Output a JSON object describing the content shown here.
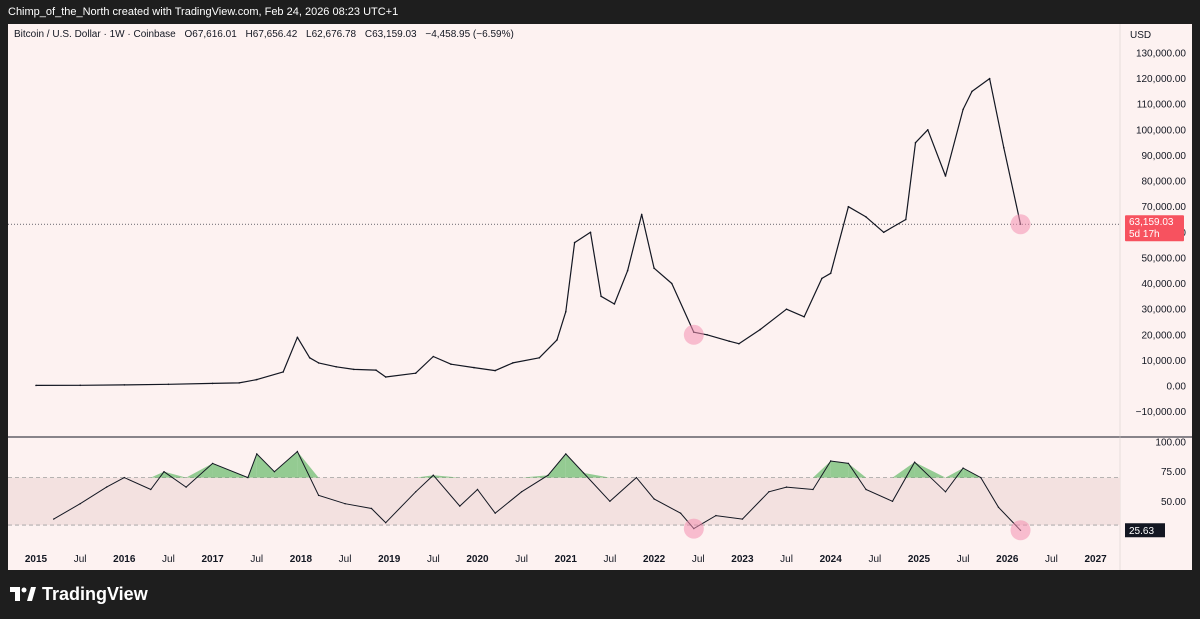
{
  "header": {
    "attribution": "Chimp_of_the_North created with TradingView.com, Feb 24, 2026 08:23 UTC+1"
  },
  "legend": {
    "symbol": "Bitcoin / U.S. Dollar · 1W · Coinbase",
    "open": "O67,616.01",
    "high": "H67,656.42",
    "low": "L62,676.78",
    "close": "C63,159.03",
    "change": "−4,458.95 (−6.59%)"
  },
  "price_axis": {
    "currency": "USD",
    "ticks": [
      "130,000.00",
      "120,000.00",
      "110,000.00",
      "100,000.00",
      "90,000.00",
      "80,000.00",
      "70,000.00",
      "60,000.00",
      "50,000.00",
      "40,000.00",
      "30,000.00",
      "20,000.00",
      "10,000.00",
      "0.00",
      "−10,000.00"
    ],
    "last_price": "63,159.03",
    "countdown": "5d 17h",
    "last_price_color": "#f7525f"
  },
  "rsi_axis": {
    "ticks": [
      "100.00",
      "75.00",
      "50.00"
    ],
    "last_value": "25.63"
  },
  "time_axis": {
    "labels": [
      {
        "t": "2015",
        "bold": true
      },
      {
        "t": "Jul",
        "bold": false
      },
      {
        "t": "2016",
        "bold": true
      },
      {
        "t": "Jul",
        "bold": false
      },
      {
        "t": "2017",
        "bold": true
      },
      {
        "t": "Jul",
        "bold": false
      },
      {
        "t": "2018",
        "bold": true
      },
      {
        "t": "Jul",
        "bold": false
      },
      {
        "t": "2019",
        "bold": true
      },
      {
        "t": "Jul",
        "bold": false
      },
      {
        "t": "2020",
        "bold": true
      },
      {
        "t": "Jul",
        "bold": false
      },
      {
        "t": "2021",
        "bold": true
      },
      {
        "t": "Jul",
        "bold": false
      },
      {
        "t": "2022",
        "bold": true
      },
      {
        "t": "Jul",
        "bold": false
      },
      {
        "t": "2023",
        "bold": true
      },
      {
        "t": "Jul",
        "bold": false
      },
      {
        "t": "2024",
        "bold": true
      },
      {
        "t": "Jul",
        "bold": false
      },
      {
        "t": "2025",
        "bold": true
      },
      {
        "t": "Jul",
        "bold": false
      },
      {
        "t": "2026",
        "bold": true
      },
      {
        "t": "Jul",
        "bold": false
      },
      {
        "t": "2027",
        "bold": true
      }
    ]
  },
  "branding": {
    "name": "TradingView"
  },
  "colors": {
    "panel_bg": "#fdf2f1",
    "price_line": "#131722",
    "highlight": "#f48fb1",
    "rsi_band": "#f3e1e0",
    "rsi_overbought_fill": "#66bb6a"
  },
  "chart_data": [
    {
      "type": "line",
      "title": "Bitcoin / U.S. Dollar · 1W · Coinbase",
      "x": [
        2015.0,
        2015.5,
        2016.0,
        2016.5,
        2017.0,
        2017.3,
        2017.5,
        2017.8,
        2017.96,
        2018.1,
        2018.2,
        2018.4,
        2018.6,
        2018.85,
        2018.96,
        2019.3,
        2019.5,
        2019.7,
        2019.96,
        2020.2,
        2020.4,
        2020.7,
        2020.9,
        2021.0,
        2021.1,
        2021.28,
        2021.4,
        2021.55,
        2021.7,
        2021.86,
        2022.0,
        2022.2,
        2022.45,
        2022.6,
        2022.85,
        2022.96,
        2023.2,
        2023.5,
        2023.7,
        2023.9,
        2024.0,
        2024.2,
        2024.4,
        2024.6,
        2024.85,
        2024.96,
        2025.1,
        2025.3,
        2025.5,
        2025.6,
        2025.8,
        2025.96,
        2026.15
      ],
      "y": [
        250,
        260,
        430,
        650,
        1000,
        1200,
        2500,
        5500,
        19000,
        11000,
        9000,
        7500,
        6500,
        6200,
        3500,
        5000,
        11500,
        8500,
        7200,
        6000,
        9000,
        11000,
        18000,
        29000,
        56000,
        60000,
        35000,
        32000,
        45000,
        67000,
        46000,
        40000,
        21000,
        20000,
        17500,
        16500,
        22000,
        30000,
        27000,
        42000,
        44000,
        70000,
        66000,
        60000,
        65000,
        95000,
        100000,
        82000,
        108000,
        115000,
        120000,
        93000,
        63159
      ],
      "ylim": [
        -10000,
        130000
      ],
      "ylabel": "USD"
    },
    {
      "type": "line",
      "title": "",
      "x": [
        2015.2,
        2015.5,
        2015.8,
        2016.0,
        2016.3,
        2016.45,
        2016.7,
        2017.0,
        2017.4,
        2017.5,
        2017.7,
        2017.96,
        2018.2,
        2018.5,
        2018.8,
        2018.96,
        2019.3,
        2019.5,
        2019.8,
        2020.0,
        2020.2,
        2020.5,
        2020.8,
        2021.0,
        2021.2,
        2021.5,
        2021.8,
        2022.0,
        2022.3,
        2022.45,
        2022.7,
        2023.0,
        2023.3,
        2023.5,
        2023.8,
        2024.0,
        2024.2,
        2024.4,
        2024.7,
        2024.95,
        2025.3,
        2025.5,
        2025.7,
        2025.9,
        2026.15
      ],
      "y": [
        35,
        48,
        62,
        70,
        60,
        75,
        62,
        82,
        70,
        90,
        75,
        92,
        55,
        48,
        44,
        32,
        58,
        72,
        46,
        60,
        40,
        58,
        72,
        90,
        74,
        50,
        70,
        52,
        40,
        27,
        38,
        35,
        58,
        62,
        60,
        84,
        82,
        60,
        50,
        83,
        58,
        78,
        70,
        45,
        25.63
      ],
      "ylim": [
        18,
        100
      ],
      "overbought": 70,
      "oversold": 30
    }
  ]
}
